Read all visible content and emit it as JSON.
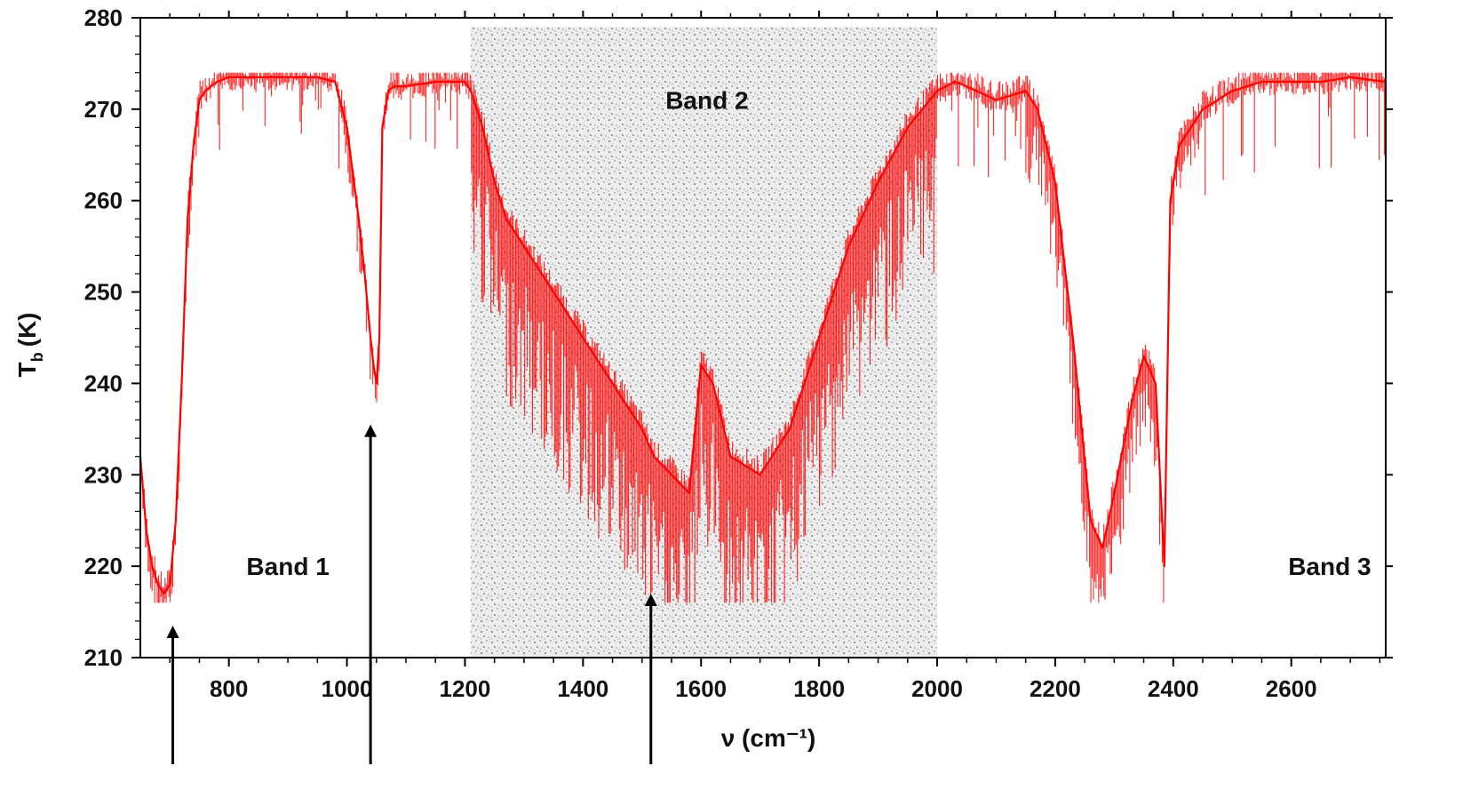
{
  "chart_data": {
    "type": "line",
    "xlabel": "ν (cm⁻¹)",
    "ylabel": "T",
    "ylabel_sub": "b",
    "ylabel_unit": "(K)",
    "xlim": [
      650,
      2760
    ],
    "ylim": [
      210,
      280
    ],
    "x_ticks": [
      800,
      1000,
      1200,
      1400,
      1600,
      1800,
      2000,
      2200,
      2400,
      2600
    ],
    "y_ticks": [
      210,
      220,
      230,
      240,
      250,
      260,
      270,
      280
    ],
    "grid": false,
    "legend": "none",
    "series_color": "#ff0000",
    "series": [
      {
        "x": [
          650,
          660,
          670,
          680,
          690,
          700,
          710,
          720,
          730,
          740,
          750,
          760,
          780,
          800,
          850,
          900,
          950,
          980,
          1000,
          1020,
          1030,
          1040,
          1045,
          1050,
          1055,
          1060,
          1070,
          1080,
          1100,
          1150,
          1200,
          1210,
          1230,
          1250,
          1270,
          1300,
          1350,
          1400,
          1450,
          1500,
          1520,
          1550,
          1580,
          1600,
          1620,
          1650,
          1700,
          1750,
          1800,
          1850,
          1900,
          1950,
          2000,
          2030,
          2050,
          2100,
          2150,
          2170,
          2200,
          2230,
          2260,
          2280,
          2300,
          2330,
          2350,
          2370,
          2385,
          2395,
          2410,
          2450,
          2500,
          2550,
          2600,
          2650,
          2700,
          2760
        ],
        "y": [
          232,
          224,
          220,
          218,
          217,
          218,
          225,
          240,
          258,
          266,
          271,
          272,
          273,
          273.5,
          273.5,
          273.5,
          273.5,
          273,
          268,
          258,
          252,
          245,
          242,
          240,
          245,
          268,
          272,
          272.5,
          272.5,
          273,
          273,
          272,
          268,
          262,
          258,
          255,
          250,
          245,
          240,
          235,
          232,
          230,
          228,
          242,
          240,
          232,
          230,
          235,
          245,
          255,
          262,
          268,
          272,
          273,
          272.5,
          271,
          272,
          270,
          262,
          245,
          225,
          222,
          228,
          238,
          243,
          240,
          220,
          260,
          266,
          270,
          272,
          273,
          273,
          273,
          273.5,
          273
        ]
      }
    ],
    "shaded_region": {
      "x": [
        1210,
        2000
      ],
      "y": [
        210,
        279
      ]
    },
    "annotations": [
      {
        "text": "Band 1",
        "x": 900,
        "y": 220
      },
      {
        "text": "Band 2",
        "x": 1610,
        "y": 271
      },
      {
        "text": "Band 3",
        "x": 2665,
        "y": 220
      }
    ],
    "arrows": [
      {
        "x": 705,
        "y_tip": 213.5
      },
      {
        "x": 1040,
        "y_tip": 235.5
      },
      {
        "x": 1515,
        "y_tip": 217
      }
    ]
  }
}
